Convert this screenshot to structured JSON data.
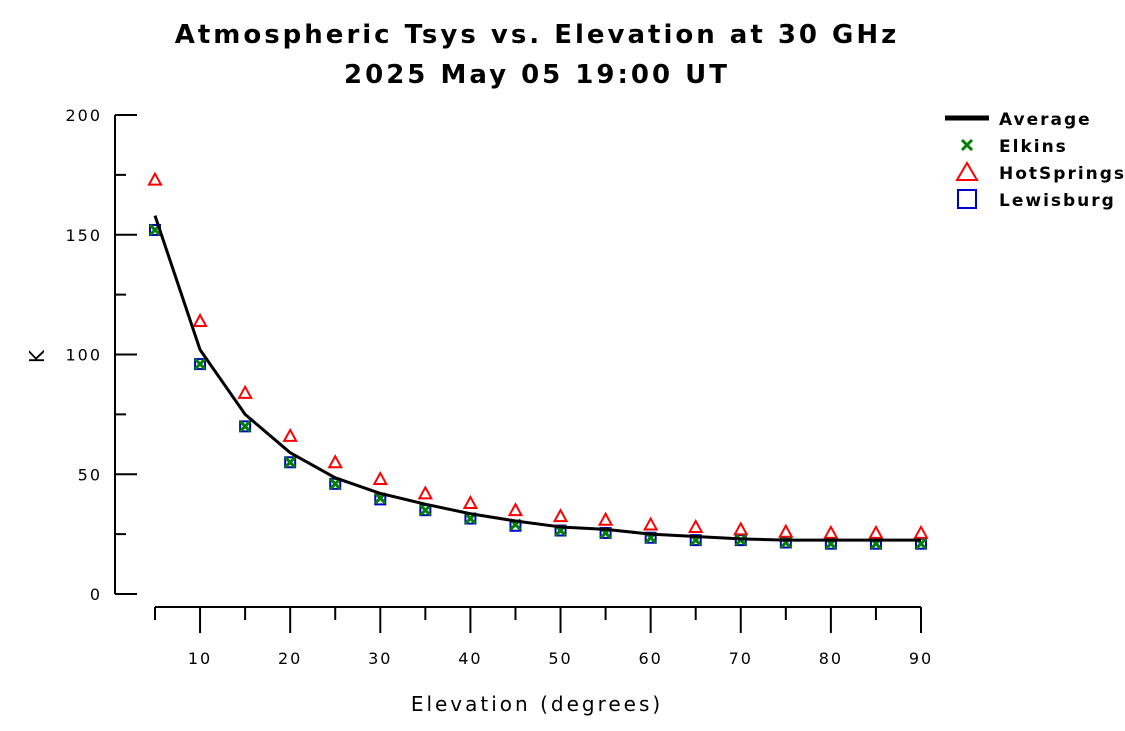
{
  "chart_data": {
    "type": "scatter",
    "title": "Atmospheric Tsys vs. Elevation at 30 GHz",
    "subtitle": "2025 May 05 19:00 UT",
    "xlabel": "Elevation (degrees)",
    "ylabel": "K",
    "xlim": [
      5,
      90
    ],
    "ylim": [
      0,
      200
    ],
    "x_ticks": [
      10,
      20,
      30,
      40,
      50,
      60,
      70,
      80,
      90
    ],
    "x_tick_labels": [
      "10",
      "20",
      "30",
      "40",
      "50",
      "60",
      "70",
      "80",
      "90"
    ],
    "y_ticks": [
      0,
      50,
      100,
      150,
      200
    ],
    "y_tick_labels": [
      "0",
      "50",
      "100",
      "150",
      "200"
    ],
    "grid": false,
    "legend_position": "top-right",
    "x": [
      5,
      10,
      15,
      20,
      25,
      30,
      35,
      40,
      45,
      50,
      55,
      60,
      65,
      70,
      75,
      80,
      85,
      90
    ],
    "series": [
      {
        "name": "Average",
        "style": "line",
        "color": "#000000",
        "values": [
          158,
          102,
          75,
          59,
          48.5,
          42,
          37.5,
          33.5,
          30.5,
          28,
          27,
          25,
          24,
          23,
          22.5,
          22.5,
          22.5,
          22.5
        ]
      },
      {
        "name": "Elkins",
        "style": "x-marker",
        "color": "#008000",
        "values": [
          152,
          96,
          70,
          55,
          46,
          40,
          35,
          31.5,
          29,
          26.5,
          25.5,
          23.5,
          22.5,
          22.5,
          21.5,
          21,
          21,
          21
        ]
      },
      {
        "name": "HotSprings",
        "style": "triangle-marker",
        "color": "#ff0000",
        "values": [
          173,
          114,
          84,
          66,
          55,
          48,
          42,
          38,
          35,
          32.5,
          31,
          29,
          28,
          27,
          26,
          25.5,
          25.5,
          25.5
        ]
      },
      {
        "name": "Lewisburg",
        "style": "square-marker",
        "color": "#0000cc",
        "values": [
          152,
          96,
          70,
          55,
          46,
          39.5,
          35,
          31.5,
          28.5,
          26.5,
          25.5,
          23.5,
          22.5,
          22.5,
          21.5,
          21,
          21,
          21
        ]
      }
    ]
  }
}
